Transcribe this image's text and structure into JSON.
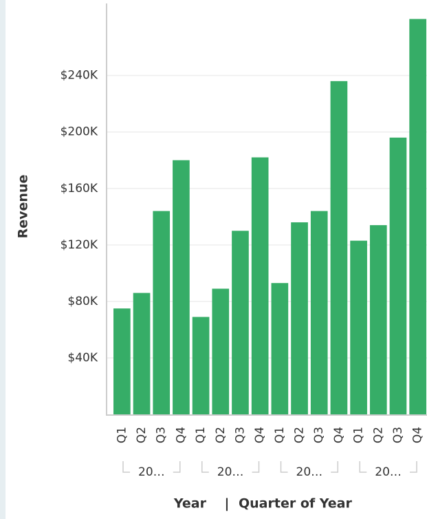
{
  "chart_data": {
    "type": "bar",
    "y_axis_title": "Revenue",
    "x_axis_titles": [
      "Year",
      "Quarter of Year"
    ],
    "categories": [
      "Q1",
      "Q2",
      "Q3",
      "Q4",
      "Q1",
      "Q2",
      "Q3",
      "Q4",
      "Q1",
      "Q2",
      "Q3",
      "Q4",
      "Q1",
      "Q2",
      "Q3",
      "Q4"
    ],
    "year_labels": [
      "20…",
      "20…",
      "20…",
      "20…"
    ],
    "values": [
      75000,
      86000,
      144000,
      180000,
      69000,
      89000,
      130000,
      182000,
      93000,
      136000,
      144000,
      236000,
      123000,
      134000,
      196000,
      280000
    ],
    "color": "#36ad67",
    "ylim": [
      0,
      291000
    ],
    "yticks": [
      {
        "value": 40000,
        "label": "$40K"
      },
      {
        "value": 80000,
        "label": "$80K"
      },
      {
        "value": 120000,
        "label": "$120K"
      },
      {
        "value": 160000,
        "label": "$160K"
      },
      {
        "value": 200000,
        "label": "$200K"
      },
      {
        "value": 240000,
        "label": "$240K"
      }
    ],
    "grid": true
  }
}
